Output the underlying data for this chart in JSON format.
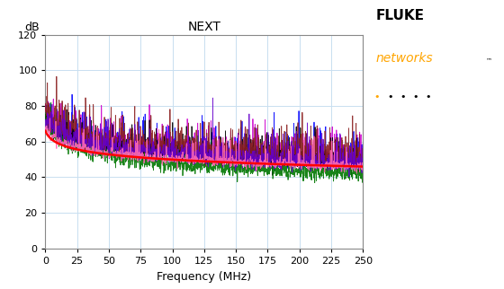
{
  "title": "NEXT",
  "ylabel": "dB",
  "xlabel": "Frequency (MHz)",
  "xlim": [
    0,
    250
  ],
  "ylim": [
    0,
    120
  ],
  "xticks": [
    0,
    25,
    50,
    75,
    100,
    125,
    150,
    175,
    200,
    225,
    250
  ],
  "yticks": [
    0,
    20,
    40,
    60,
    80,
    100,
    120
  ],
  "grid_color": "#c8dff0",
  "bg_color": "#ffffff",
  "n_points": 2500,
  "freq_max": 250,
  "seed": 42,
  "line_colors": [
    "#0000ff",
    "#cc00cc",
    "#000000",
    "#007700",
    "#8b2020",
    "#6600cc"
  ],
  "ref_color": "#ff0000",
  "title_fontsize": 10,
  "axis_label_fontsize": 9,
  "tick_fontsize": 8,
  "fluke_text": "FLUKE",
  "networks_text": "networks",
  "fluke_color": "#000000",
  "networks_color": "#FFA500",
  "dot_colors": [
    "#FFA500",
    "#000000",
    "#000000",
    "#000000",
    "#000000"
  ]
}
